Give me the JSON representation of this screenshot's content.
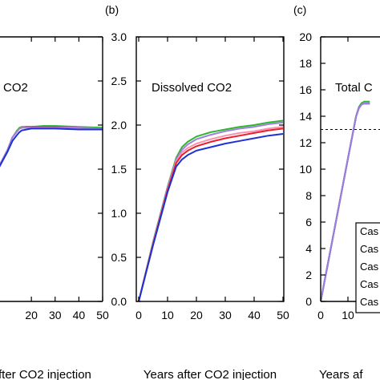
{
  "chart_data": [
    {
      "id": "a",
      "type": "line",
      "panel_label": "",
      "title": "CO2",
      "xlabel": "fter CO2 injection",
      "ylabel": "",
      "x_ticks": [
        20,
        30,
        40,
        50
      ],
      "x_tick_labels": [
        "20",
        "30",
        "40",
        "50"
      ],
      "grid": false,
      "series": [
        {
          "color": "#2db52d",
          "x": [
            0,
            10,
            12,
            14,
            15,
            16,
            18,
            20,
            25,
            30,
            40,
            50
          ],
          "y": [
            1.2,
            1.72,
            1.86,
            1.94,
            1.97,
            1.98,
            1.98,
            1.98,
            1.99,
            1.99,
            1.98,
            1.97
          ]
        },
        {
          "color": "#e8202a",
          "x": [
            0,
            10,
            12,
            14,
            15,
            16,
            18,
            20,
            25,
            30,
            40,
            50
          ],
          "y": [
            1.2,
            1.72,
            1.86,
            1.93,
            1.96,
            1.97,
            1.98,
            1.98,
            1.98,
            1.98,
            1.97,
            1.96
          ]
        },
        {
          "color": "#ff8fb0",
          "x": [
            0,
            10,
            12,
            14,
            15,
            16,
            18,
            20,
            25,
            30,
            40,
            50
          ],
          "y": [
            1.2,
            1.72,
            1.86,
            1.93,
            1.96,
            1.97,
            1.97,
            1.97,
            1.97,
            1.97,
            1.97,
            1.96
          ]
        },
        {
          "color": "#9b80dd",
          "x": [
            0,
            10,
            12,
            14,
            15,
            16,
            18,
            20,
            25,
            30,
            40,
            50
          ],
          "y": [
            1.2,
            1.72,
            1.86,
            1.93,
            1.96,
            1.97,
            1.97,
            1.97,
            1.97,
            1.97,
            1.97,
            1.96
          ]
        },
        {
          "color": "#1c32d6",
          "x": [
            0,
            10,
            12,
            14,
            15,
            16,
            18,
            20,
            25,
            30,
            40,
            50
          ],
          "y": [
            1.2,
            1.7,
            1.82,
            1.89,
            1.92,
            1.94,
            1.95,
            1.96,
            1.96,
            1.96,
            1.95,
            1.95
          ]
        }
      ]
    },
    {
      "id": "b",
      "type": "line",
      "panel_label": "(b)",
      "title": "Dissolved CO2",
      "xlabel": "Years after CO2 injection",
      "ylabel": "",
      "xlim": [
        0,
        50
      ],
      "ylim": [
        0,
        3.0
      ],
      "x_ticks": [
        0,
        10,
        20,
        30,
        40,
        50
      ],
      "x_tick_labels": [
        "0",
        "10",
        "20",
        "30",
        "40",
        "50"
      ],
      "y_ticks": [
        0,
        0.5,
        1.0,
        1.5,
        2.0,
        2.5,
        3.0
      ],
      "y_tick_labels": [
        "0.0",
        "0.5",
        "1.0",
        "1.5",
        "2.0",
        "2.5",
        "3.0"
      ],
      "grid": false,
      "series": [
        {
          "color": "#2db52d",
          "x": [
            0,
            5,
            10,
            13,
            15,
            17,
            20,
            25,
            30,
            35,
            40,
            45,
            50
          ],
          "y": [
            0,
            0.68,
            1.3,
            1.63,
            1.75,
            1.81,
            1.87,
            1.92,
            1.95,
            1.98,
            2.0,
            2.03,
            2.05
          ]
        },
        {
          "color": "#9b80dd",
          "x": [
            0,
            5,
            10,
            13,
            15,
            17,
            20,
            25,
            30,
            35,
            40,
            45,
            50
          ],
          "y": [
            0,
            0.67,
            1.29,
            1.61,
            1.72,
            1.78,
            1.84,
            1.89,
            1.93,
            1.96,
            1.98,
            2.01,
            2.03
          ]
        },
        {
          "color": "#ff8fb0",
          "x": [
            0,
            5,
            10,
            13,
            15,
            17,
            20,
            25,
            30,
            35,
            40,
            45,
            50
          ],
          "y": [
            0,
            0.66,
            1.27,
            1.59,
            1.69,
            1.74,
            1.79,
            1.84,
            1.88,
            1.91,
            1.93,
            1.96,
            1.98
          ]
        },
        {
          "color": "#e8202a",
          "x": [
            0,
            5,
            10,
            13,
            15,
            17,
            20,
            25,
            30,
            35,
            40,
            45,
            50
          ],
          "y": [
            0,
            0.65,
            1.26,
            1.57,
            1.66,
            1.71,
            1.76,
            1.81,
            1.85,
            1.88,
            1.91,
            1.94,
            1.96
          ]
        },
        {
          "color": "#1c32d6",
          "x": [
            0,
            5,
            10,
            13,
            15,
            17,
            20,
            25,
            30,
            35,
            40,
            45,
            50
          ],
          "y": [
            0,
            0.64,
            1.24,
            1.53,
            1.61,
            1.66,
            1.71,
            1.75,
            1.79,
            1.82,
            1.85,
            1.88,
            1.9
          ]
        }
      ]
    },
    {
      "id": "c",
      "type": "line",
      "panel_label": "(c)",
      "title": "Total C",
      "xlabel": "Years af",
      "ylabel": "",
      "ylim": [
        0,
        20
      ],
      "x_ticks": [
        0,
        10
      ],
      "x_tick_labels": [
        "0",
        "10"
      ],
      "y_ticks": [
        0,
        2,
        4,
        6,
        8,
        10,
        12,
        14,
        16,
        18,
        20
      ],
      "y_tick_labels": [
        "0",
        "2",
        "4",
        "6",
        "8",
        "10",
        "12",
        "14",
        "16",
        "18",
        "20"
      ],
      "reference_line": {
        "y": 13.0,
        "style": "dashed"
      },
      "grid": false,
      "legend": {
        "placement": "bottom-right",
        "entries": [
          "Cas",
          "Cas",
          "Cas",
          "Cas",
          "Cas"
        ]
      },
      "series": [
        {
          "color": "#2db52d",
          "x": [
            0,
            5,
            10,
            13,
            14,
            15,
            16,
            17,
            18
          ],
          "y": [
            0,
            5.4,
            10.8,
            14.0,
            14.7,
            15.0,
            15.1,
            15.1,
            15.1
          ]
        },
        {
          "color": "#e8202a",
          "x": [
            0,
            5,
            10,
            13,
            14,
            15,
            16,
            17,
            18
          ],
          "y": [
            0,
            5.4,
            10.8,
            14.0,
            14.6,
            14.9,
            15.0,
            15.0,
            15.0
          ]
        },
        {
          "color": "#ff8fb0",
          "x": [
            0,
            5,
            10,
            13,
            14,
            15,
            16,
            17,
            18
          ],
          "y": [
            0,
            5.4,
            10.8,
            14.0,
            14.6,
            14.9,
            15.0,
            15.0,
            15.0
          ]
        },
        {
          "color": "#1c32d6",
          "x": [
            0,
            5,
            10,
            13,
            14,
            15,
            16,
            17,
            18
          ],
          "y": [
            0,
            5.4,
            10.8,
            14.0,
            14.6,
            14.9,
            14.95,
            14.95,
            14.95
          ]
        },
        {
          "color": "#9b80dd",
          "x": [
            0,
            5,
            10,
            13,
            14,
            15,
            16,
            17,
            18
          ],
          "y": [
            0,
            5.4,
            10.8,
            14.0,
            14.6,
            14.9,
            14.95,
            14.95,
            14.95
          ]
        }
      ]
    }
  ]
}
